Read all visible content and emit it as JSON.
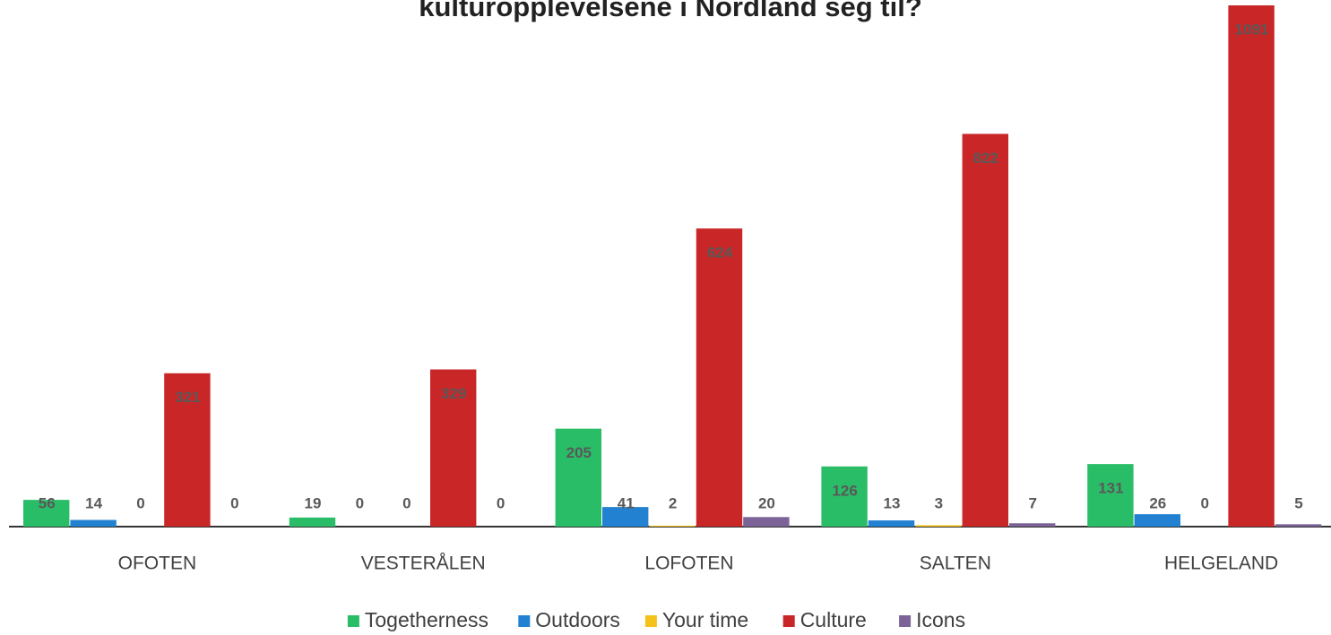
{
  "chart_data": {
    "type": "bar",
    "title": "kulturopplevelsene i Nordland seg til?",
    "categories": [
      "OFOTEN",
      "VESTERÅLEN",
      "LOFOTEN",
      "SALTEN",
      "HELGELAND"
    ],
    "series": [
      {
        "name": "Togetherness",
        "color": "#2abd68",
        "values": [
          56,
          19,
          205,
          126,
          131
        ]
      },
      {
        "name": "Outdoors",
        "color": "#2281d1",
        "values": [
          14,
          0,
          41,
          13,
          26
        ]
      },
      {
        "name": "Your time",
        "color": "#f5c21b",
        "values": [
          0,
          0,
          2,
          3,
          0
        ]
      },
      {
        "name": "Culture",
        "color": "#c92627",
        "values": [
          321,
          329,
          624,
          822,
          1091
        ]
      },
      {
        "name": "Icons",
        "color": "#7b6397",
        "values": [
          0,
          0,
          20,
          7,
          5
        ]
      }
    ],
    "ylim": [
      0,
      1091
    ],
    "legend": "bottom"
  }
}
